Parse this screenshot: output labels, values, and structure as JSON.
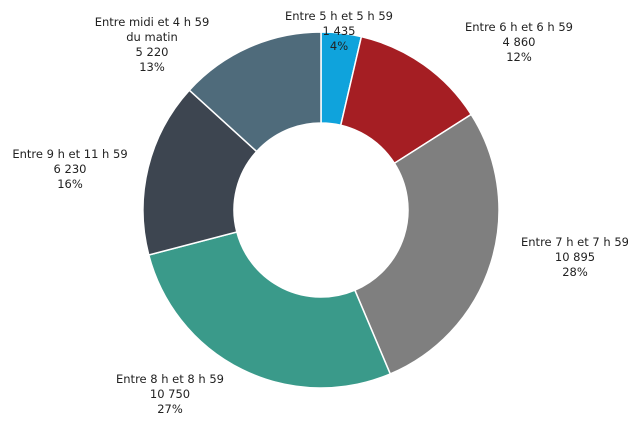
{
  "chart_data": {
    "type": "donut",
    "categories": [
      "Entre 5 h et 5 h 59",
      "Entre 6 h et 6 h 59",
      "Entre 7 h et 7 h 59",
      "Entre 8 h et 8 h 59",
      "Entre 9 h et 11 h 59",
      "Entre midi et 4 h 59 du matin"
    ],
    "values": [
      1435,
      4860,
      10895,
      10750,
      6230,
      5220
    ],
    "value_labels": [
      "1 435",
      "4 860",
      "10 895",
      "10 750",
      "6 230",
      "5 220"
    ],
    "percentages": [
      4,
      12,
      28,
      27,
      16,
      13
    ],
    "percentage_labels": [
      "4%",
      "12%",
      "28%",
      "27%",
      "16%",
      "13%"
    ],
    "colors": [
      "#0fa3dc",
      "#a51e23",
      "#7f7f7f",
      "#3a9a8a",
      "#3d4550",
      "#4f6b7b"
    ]
  }
}
